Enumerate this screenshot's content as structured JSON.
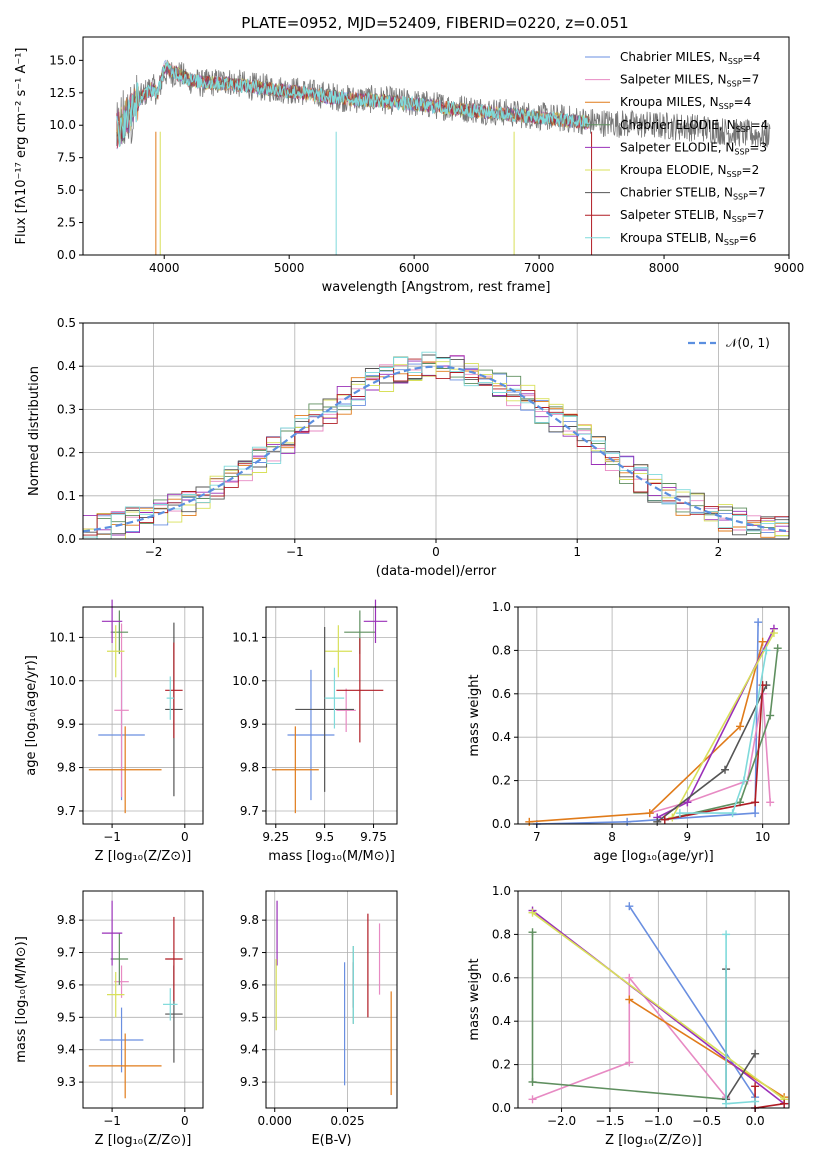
{
  "figure": {
    "title": "PLATE=0952, MJD=52409, FIBERID=0220, z=0.051"
  },
  "series_colors": [
    "#6a8fe0",
    "#e78ac3",
    "#e07b1a",
    "#5f8f5f",
    "#9a30b8",
    "#d8e05a",
    "#555555",
    "#b01c24",
    "#7fdadb"
  ],
  "chart_data": [
    {
      "id": "spectrum",
      "type": "line",
      "xlabel": "wavelength [Angstrom, rest frame]",
      "ylabel": "Flux [fλ10⁻¹⁷ erg cm⁻² s⁻¹ A⁻¹]",
      "xlim": [
        3350,
        9000
      ],
      "ylim": [
        0,
        16.8
      ],
      "xticks": [
        4000,
        5000,
        6000,
        7000,
        8000,
        9000
      ],
      "yticks": [
        0.0,
        2.5,
        5.0,
        7.5,
        10.0,
        12.5,
        15.0
      ],
      "legend_position": "upper right",
      "legend": [
        "Chabrier MILES, N_SSP=4",
        "Salpeter MILES, N_SSP=7",
        "Kroupa MILES, N_SSP=4",
        "Chabrier ELODIE, N_SSP=4",
        "Salpeter ELODIE, N_SSP=3",
        "Kroupa ELODIE, N_SSP=2",
        "Chabrier STELIB, N_SSP=7",
        "Salpeter STELIB, N_SSP=7",
        "Kroupa STELIB, N_SSP=6"
      ],
      "observed": {
        "x": [
          3620,
          3700,
          3800,
          3900,
          3950,
          4000,
          4100,
          4200,
          4300,
          4500,
          4700,
          4900,
          5100,
          5300,
          5500,
          5700,
          5900,
          6100,
          6300,
          6500,
          6700,
          6900,
          7100,
          7300,
          7500,
          7700,
          7900,
          8100,
          8300,
          8500,
          8700,
          8850
        ],
        "y": [
          9.0,
          10.5,
          12.0,
          13.0,
          12.5,
          14.0,
          14.0,
          13.5,
          13.2,
          13.4,
          13.0,
          12.8,
          12.6,
          12.3,
          12.0,
          12.0,
          11.8,
          11.6,
          11.4,
          11.2,
          11.0,
          10.8,
          10.6,
          10.4,
          10.2,
          10.1,
          10.0,
          9.9,
          9.8,
          9.5,
          9.3,
          9.2
        ]
      },
      "model": {
        "x": [
          3620,
          3700,
          3800,
          3900,
          3950,
          4000,
          4100,
          4200,
          4300,
          4500,
          4700,
          4900,
          5100,
          5300,
          5500,
          5700,
          5900,
          6100,
          6300,
          6500,
          6700,
          6900,
          7100,
          7300,
          7400
        ],
        "y": [
          9.5,
          10.5,
          12.0,
          12.8,
          12.5,
          14.5,
          14.0,
          13.5,
          13.3,
          13.2,
          13.0,
          12.7,
          12.5,
          12.2,
          12.0,
          11.9,
          11.7,
          11.5,
          11.3,
          11.1,
          10.9,
          10.7,
          10.5,
          10.3,
          10.2
        ]
      }
    },
    {
      "id": "residuals",
      "type": "line",
      "xlabel": "(data-model)/error",
      "ylabel": "Normed distribution",
      "xlim": [
        -2.5,
        2.5
      ],
      "ylim": [
        0,
        0.5
      ],
      "xticks": [
        -2,
        -1,
        0,
        1,
        2
      ],
      "yticks": [
        0.0,
        0.1,
        0.2,
        0.3,
        0.4,
        0.5
      ],
      "legend": [
        "𝒩(0, 1)"
      ],
      "legend_position": "upper right",
      "reference_curve": "N(0,1)"
    },
    {
      "id": "age_vs_z",
      "type": "scatter",
      "xlabel": "Z [log₁₀(Z/Z⊙)]",
      "ylabel": "age  [log₁₀(age/yr)]",
      "xlim": [
        -1.4,
        0.25
      ],
      "ylim": [
        9.67,
        10.17
      ],
      "xticks": [
        -1,
        0
      ],
      "yticks": [
        9.7,
        9.8,
        9.9,
        10.0,
        10.1
      ],
      "points": [
        {
          "x": -0.87,
          "y": 9.875,
          "xerr": 0.32,
          "yerr": 0.15
        },
        {
          "x": -0.87,
          "y": 9.932,
          "xerr": 0.1,
          "yerr": 0.2
        },
        {
          "x": -0.82,
          "y": 9.795,
          "xerr": 0.5,
          "yerr": 0.1
        },
        {
          "x": -0.9,
          "y": 10.112,
          "xerr": 0.12,
          "yerr": 0.05
        },
        {
          "x": -1.0,
          "y": 10.137,
          "xerr": 0.14,
          "yerr": 0.05
        },
        {
          "x": -0.95,
          "y": 10.068,
          "xerr": 0.12,
          "yerr": 0.06
        },
        {
          "x": -0.15,
          "y": 9.934,
          "xerr": 0.12,
          "yerr": 0.2
        },
        {
          "x": -0.15,
          "y": 9.978,
          "xerr": 0.12,
          "yerr": 0.11
        },
        {
          "x": -0.2,
          "y": 9.96,
          "xerr": 0.05,
          "yerr": 0.05
        }
      ]
    },
    {
      "id": "age_vs_mass",
      "type": "scatter",
      "xlabel": "mass [log₁₀(M/M⊙)]",
      "ylabel": "",
      "xlim": [
        9.2,
        9.87
      ],
      "ylim": [
        9.67,
        10.17
      ],
      "xticks": [
        9.25,
        9.5,
        9.75
      ],
      "yticks": [
        9.7,
        9.8,
        9.9,
        10.0,
        10.1
      ],
      "points": [
        {
          "x": 9.43,
          "y": 9.875,
          "xerr": 0.12,
          "yerr": 0.15
        },
        {
          "x": 9.61,
          "y": 9.932,
          "xerr": 0.05,
          "yerr": 0.05
        },
        {
          "x": 9.35,
          "y": 9.795,
          "xerr": 0.12,
          "yerr": 0.1
        },
        {
          "x": 9.68,
          "y": 10.112,
          "xerr": 0.08,
          "yerr": 0.05
        },
        {
          "x": 9.76,
          "y": 10.137,
          "xerr": 0.06,
          "yerr": 0.05
        },
        {
          "x": 9.57,
          "y": 10.068,
          "xerr": 0.07,
          "yerr": 0.06
        },
        {
          "x": 9.5,
          "y": 9.934,
          "xerr": 0.15,
          "yerr": 0.19
        },
        {
          "x": 9.68,
          "y": 9.978,
          "xerr": 0.12,
          "yerr": 0.12
        },
        {
          "x": 9.55,
          "y": 9.96,
          "xerr": 0.05,
          "yerr": 0.07
        }
      ]
    },
    {
      "id": "weight_vs_age",
      "type": "line",
      "xlabel": "age  [log₁₀(age/yr)]",
      "ylabel": "mass weight",
      "xlim": [
        6.75,
        10.35
      ],
      "ylim": [
        0,
        1.0
      ],
      "xticks": [
        7,
        8,
        9,
        10
      ],
      "yticks": [
        0.0,
        0.2,
        0.4,
        0.6,
        0.8,
        1.0
      ],
      "series": [
        {
          "x": [
            7.0,
            8.2,
            9.9,
            9.94
          ],
          "y": [
            0.0,
            0.01,
            0.05,
            0.93
          ]
        },
        {
          "x": [
            8.5,
            9.0,
            9.8,
            10.0,
            10.1
          ],
          "y": [
            0.05,
            0.1,
            0.2,
            0.6,
            0.1
          ]
        },
        {
          "x": [
            6.9,
            8.5,
            9.7,
            10.0
          ],
          "y": [
            0.01,
            0.05,
            0.45,
            0.84
          ]
        },
        {
          "x": [
            8.7,
            9.7,
            10.1,
            10.2
          ],
          "y": [
            0.02,
            0.1,
            0.5,
            0.81
          ]
        },
        {
          "x": [
            8.6,
            9.0,
            10.15
          ],
          "y": [
            0.03,
            0.1,
            0.9
          ]
        },
        {
          "x": [
            8.8,
            10.15
          ],
          "y": [
            0.03,
            0.88
          ]
        },
        {
          "x": [
            8.6,
            9.5,
            10.05
          ],
          "y": [
            0.01,
            0.25,
            0.64
          ]
        },
        {
          "x": [
            8.7,
            9.9,
            10.0
          ],
          "y": [
            0.02,
            0.1,
            0.64
          ]
        },
        {
          "x": [
            8.9,
            9.6,
            9.75,
            10.05
          ],
          "y": [
            0.05,
            0.05,
            0.2,
            0.8
          ]
        }
      ]
    },
    {
      "id": "mass_vs_z",
      "type": "scatter",
      "xlabel": "Z [log₁₀(Z/Z⊙)]",
      "ylabel": "mass [log₁₀(M/M⊙)]",
      "xlim": [
        -1.4,
        0.25
      ],
      "ylim": [
        9.22,
        9.89
      ],
      "xticks": [
        -1,
        0
      ],
      "yticks": [
        9.3,
        9.4,
        9.5,
        9.6,
        9.7,
        9.8
      ],
      "points": [
        {
          "x": -0.87,
          "y": 9.43,
          "xerr": 0.3,
          "yerr": 0.1
        },
        {
          "x": -0.87,
          "y": 9.61,
          "xerr": 0.1,
          "yerr": 0.05
        },
        {
          "x": -0.82,
          "y": 9.35,
          "xerr": 0.5,
          "yerr": 0.1
        },
        {
          "x": -0.9,
          "y": 9.68,
          "xerr": 0.12,
          "yerr": 0.08
        },
        {
          "x": -1.0,
          "y": 9.76,
          "xerr": 0.14,
          "yerr": 0.1
        },
        {
          "x": -0.95,
          "y": 9.57,
          "xerr": 0.12,
          "yerr": 0.07
        },
        {
          "x": -0.15,
          "y": 9.51,
          "xerr": 0.12,
          "yerr": 0.15
        },
        {
          "x": -0.15,
          "y": 9.68,
          "xerr": 0.12,
          "yerr": 0.13
        },
        {
          "x": -0.2,
          "y": 9.54,
          "xerr": 0.1,
          "yerr": 0.05
        }
      ]
    },
    {
      "id": "mass_vs_ebv",
      "type": "scatter",
      "xlabel": "E(B-V)",
      "ylabel": "",
      "xlim": [
        -0.003,
        0.042
      ],
      "ylim": [
        9.22,
        9.89
      ],
      "xticks": [
        0.0,
        0.025
      ],
      "xtick_labels": [
        "0.000",
        "0.025"
      ],
      "yticks": [
        9.3,
        9.4,
        9.5,
        9.6,
        9.7,
        9.8
      ],
      "points": [
        {
          "x": 0.024,
          "y": 9.48,
          "yerr": 0.19
        },
        {
          "x": 0.036,
          "y": 9.68,
          "yerr": 0.11
        },
        {
          "x": 0.04,
          "y": 9.42,
          "yerr": 0.16
        },
        {
          "x": 0.027,
          "y": 9.6,
          "yerr": 0.12
        },
        {
          "x": 0.0008,
          "y": 9.76,
          "yerr": 0.1
        },
        {
          "x": 0.0005,
          "y": 9.57,
          "yerr": 0.11
        },
        {
          "x": 0.027,
          "y": 9.6,
          "yerr": 0.07
        },
        {
          "x": 0.032,
          "y": 9.66,
          "yerr": 0.16
        },
        {
          "x": 0.027,
          "y": 9.6,
          "yerr": 0.12
        }
      ]
    },
    {
      "id": "weight_vs_z",
      "type": "line",
      "xlabel": "Z [log₁₀(Z/Z⊙)]",
      "ylabel": "mass weight",
      "xlim": [
        -2.45,
        0.35
      ],
      "ylim": [
        0,
        1.0
      ],
      "xticks": [
        -2.0,
        -1.5,
        -1.0,
        -0.5,
        0.0
      ],
      "xtick_labels": [
        "−2.0",
        "−1.5",
        "−1.0",
        "−0.5",
        "0.0"
      ],
      "yticks": [
        0.0,
        0.2,
        0.4,
        0.6,
        0.8,
        1.0
      ],
      "series": [
        {
          "x": [
            -1.3,
            0.0,
            0.0
          ],
          "y": [
            0.93,
            0.05,
            0.0
          ]
        },
        {
          "x": [
            -2.3,
            -1.3,
            -1.3,
            -0.3
          ],
          "y": [
            0.04,
            0.21,
            0.6,
            0.05
          ]
        },
        {
          "x": [
            -1.3,
            0.3
          ],
          "y": [
            0.5,
            0.05
          ]
        },
        {
          "x": [
            -2.3,
            -2.3,
            -0.3
          ],
          "y": [
            0.81,
            0.12,
            0.04
          ]
        },
        {
          "x": [
            -2.3,
            0.3
          ],
          "y": [
            0.91,
            0.02
          ]
        },
        {
          "x": [
            -2.3,
            0.3
          ],
          "y": [
            0.9,
            0.04
          ]
        },
        {
          "x": [
            -0.3,
            -0.3,
            0.0
          ],
          "y": [
            0.64,
            0.04,
            0.25
          ]
        },
        {
          "x": [
            0.0,
            0.0,
            0.3
          ],
          "y": [
            0.1,
            0.0,
            0.02
          ]
        },
        {
          "x": [
            -0.3,
            -0.3,
            0.0
          ],
          "y": [
            0.8,
            0.02,
            0.03
          ]
        }
      ]
    }
  ]
}
